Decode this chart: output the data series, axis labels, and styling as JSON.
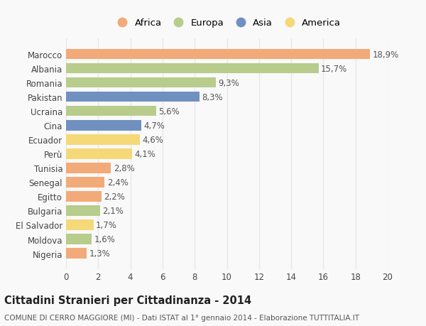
{
  "categories": [
    "Marocco",
    "Albania",
    "Romania",
    "Pakistan",
    "Ucraina",
    "Cina",
    "Ecuador",
    "Perù",
    "Tunisia",
    "Senegal",
    "Egitto",
    "Bulgaria",
    "El Salvador",
    "Moldova",
    "Nigeria"
  ],
  "values": [
    18.9,
    15.7,
    9.3,
    8.3,
    5.6,
    4.7,
    4.6,
    4.1,
    2.8,
    2.4,
    2.2,
    2.1,
    1.7,
    1.6,
    1.3
  ],
  "labels": [
    "18,9%",
    "15,7%",
    "9,3%",
    "8,3%",
    "5,6%",
    "4,7%",
    "4,6%",
    "4,1%",
    "2,8%",
    "2,4%",
    "2,2%",
    "2,1%",
    "1,7%",
    "1,6%",
    "1,3%"
  ],
  "continents": [
    "Africa",
    "Europa",
    "Europa",
    "Asia",
    "Europa",
    "Asia",
    "America",
    "America",
    "Africa",
    "Africa",
    "Africa",
    "Europa",
    "America",
    "Europa",
    "Africa"
  ],
  "colors": {
    "Africa": "#F2AA78",
    "Europa": "#B8CC8C",
    "Asia": "#7090C0",
    "America": "#F5D878"
  },
  "legend_order": [
    "Africa",
    "Europa",
    "Asia",
    "America"
  ],
  "title": "Cittadini Stranieri per Cittadinanza - 2014",
  "subtitle": "COMUNE DI CERRO MAGGIORE (MI) - Dati ISTAT al 1° gennaio 2014 - Elaborazione TUTTITALIA.IT",
  "xlim": [
    0,
    20
  ],
  "xticks": [
    0,
    2,
    4,
    6,
    8,
    10,
    12,
    14,
    16,
    18,
    20
  ],
  "background_color": "#f9f9f9",
  "grid_color": "#e8e8e8",
  "bar_height": 0.72,
  "title_fontsize": 10.5,
  "subtitle_fontsize": 7.5,
  "label_fontsize": 8.5,
  "tick_fontsize": 8.5,
  "legend_fontsize": 9.5
}
